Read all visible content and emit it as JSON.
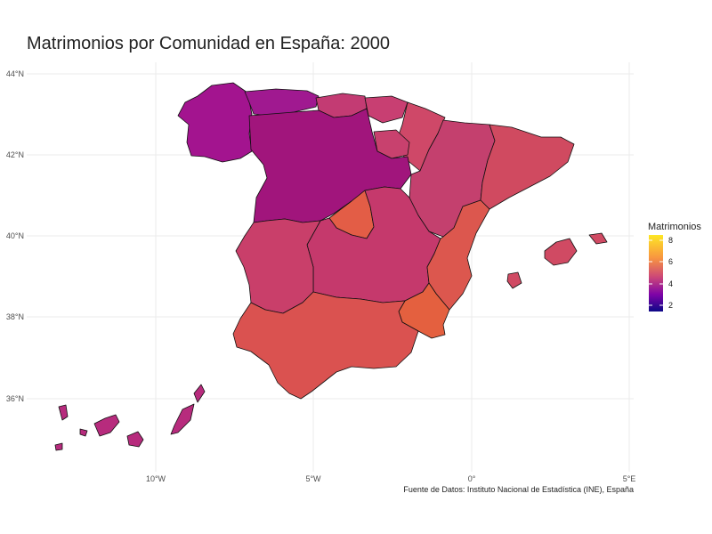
{
  "title": "Matrimonios por Comunidad en España: 2000",
  "caption": "Fuente de Datos: Instituto Nacional de Estadística (INE), España",
  "axes": {
    "x_ticks": [
      "10°W",
      "5°W",
      "0°",
      "5°E"
    ],
    "y_ticks": [
      "44°N",
      "42°N",
      "40°N",
      "38°N",
      "36°N"
    ]
  },
  "legend": {
    "title": "Matrimonios",
    "ticks": [
      "8",
      "6",
      "4",
      "2"
    ],
    "colors": [
      "#fde725",
      "#f89540",
      "#cc4778",
      "#7e03a8",
      "#0d0887"
    ],
    "range": [
      1.5,
      8.5
    ]
  },
  "regions": [
    {
      "name": "Galicia",
      "value": 4.3,
      "color": "#a3148f"
    },
    {
      "name": "Asturias",
      "value": 4.4,
      "color": "#a01990"
    },
    {
      "name": "Cantabria",
      "value": 5.2,
      "color": "#c33b73"
    },
    {
      "name": "País Vasco",
      "value": 5.3,
      "color": "#c83f72"
    },
    {
      "name": "Navarra",
      "value": 5.5,
      "color": "#cf4868"
    },
    {
      "name": "La Rioja",
      "value": 5.4,
      "color": "#c8416e"
    },
    {
      "name": "Aragón",
      "value": 5.2,
      "color": "#c4406e"
    },
    {
      "name": "Cataluña",
      "value": 5.6,
      "color": "#d04a60"
    },
    {
      "name": "Castilla y León",
      "value": 4.1,
      "color": "#a1157c"
    },
    {
      "name": "Comunidad de Madrid",
      "value": 6.3,
      "color": "#e35d46"
    },
    {
      "name": "Castilla-La Mancha",
      "value": 5.2,
      "color": "#c5396c"
    },
    {
      "name": "Extremadura",
      "value": 5.3,
      "color": "#c93f6a"
    },
    {
      "name": "Comunidad Valenciana",
      "value": 6.0,
      "color": "#dc574e"
    },
    {
      "name": "Región de Murcia",
      "value": 6.3,
      "color": "#e4603f"
    },
    {
      "name": "Andalucía",
      "value": 6.0,
      "color": "#da5250"
    },
    {
      "name": "Islas Baleares",
      "value": 5.5,
      "color": "#d04a63"
    },
    {
      "name": "Canarias",
      "value": 4.8,
      "color": "#b72b7d"
    }
  ]
}
